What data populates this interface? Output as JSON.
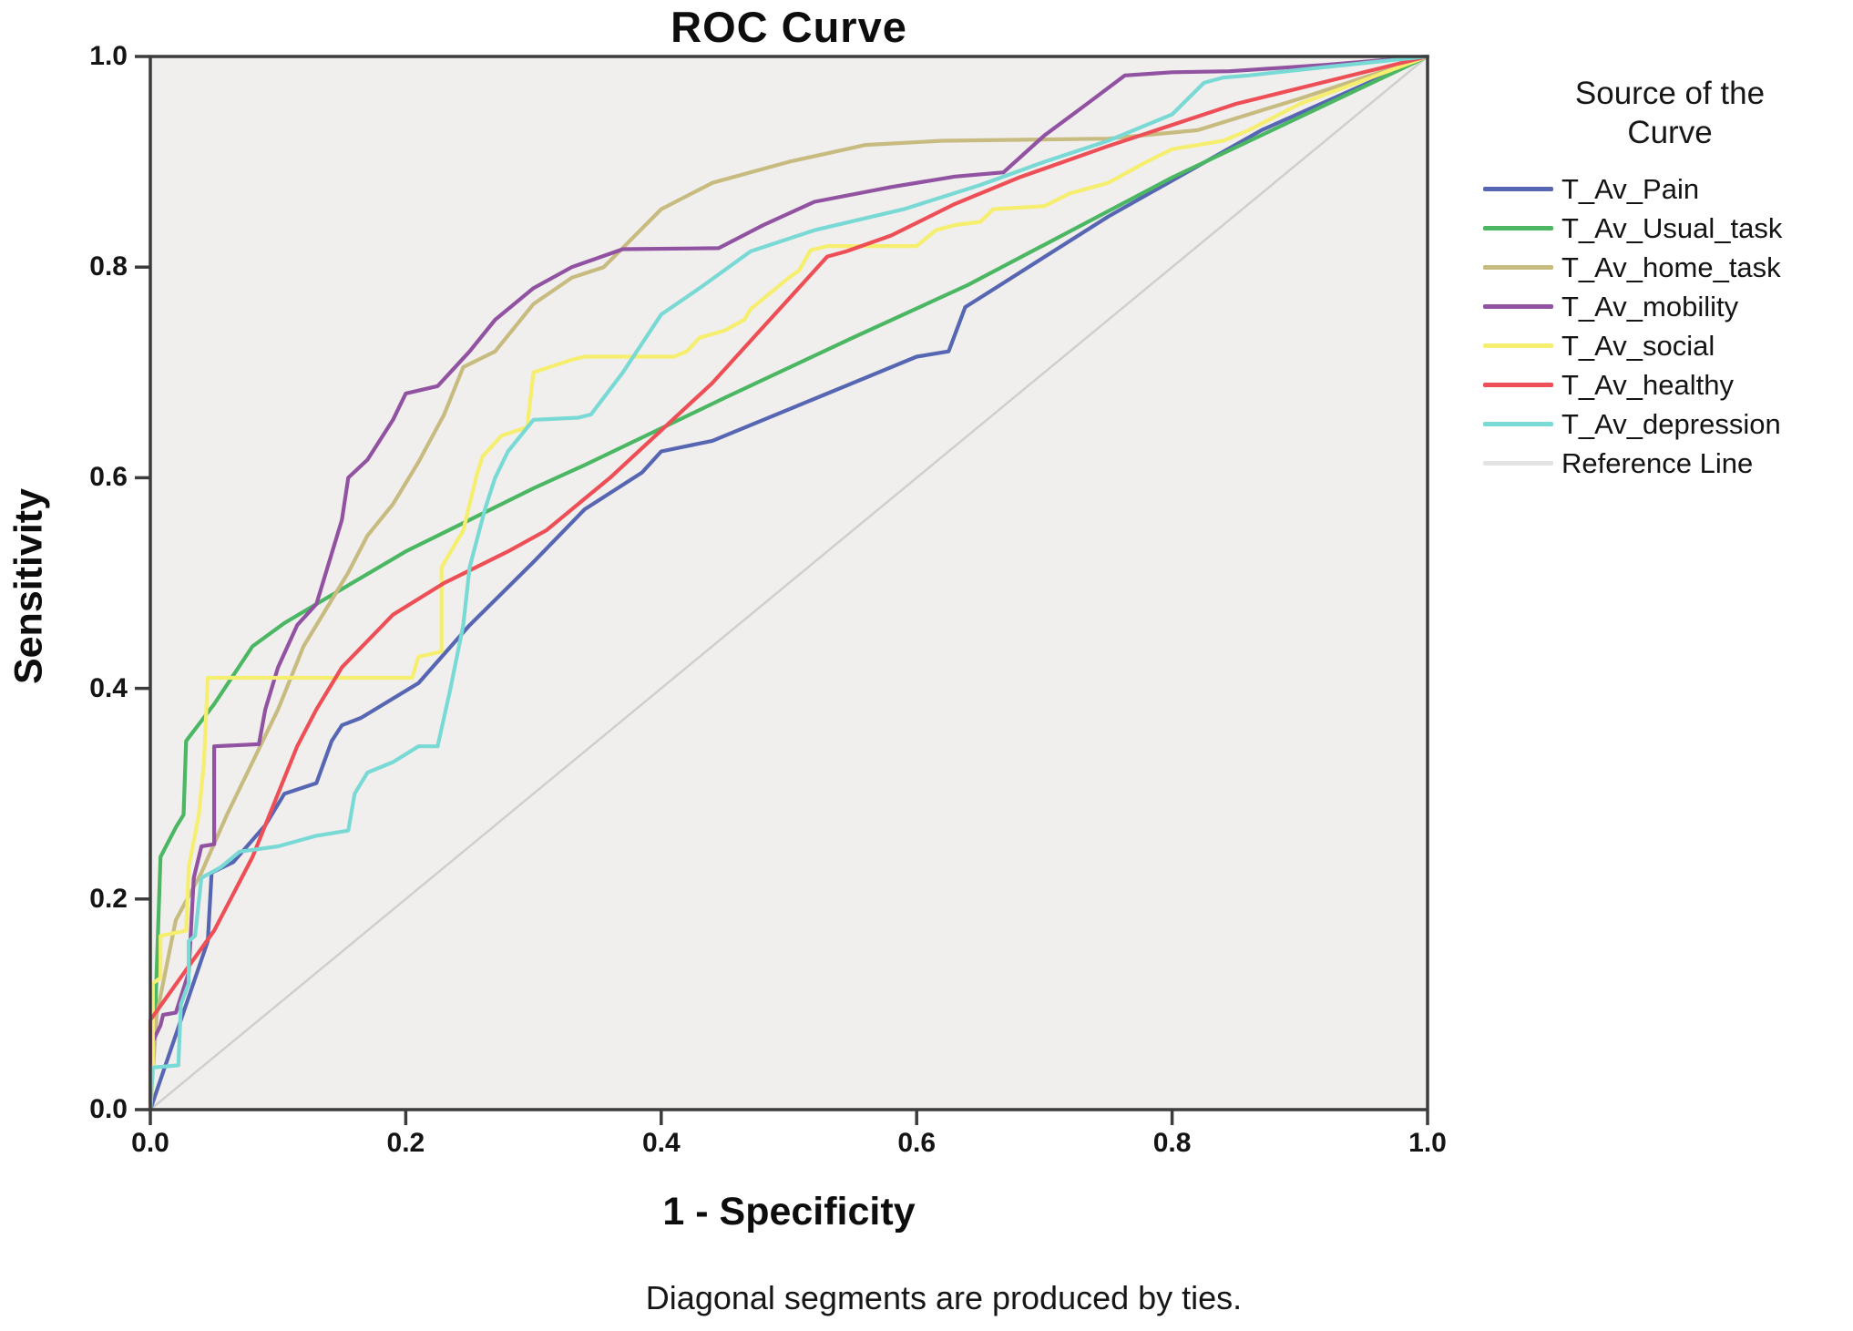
{
  "chart_data": {
    "type": "line",
    "variant": "roc",
    "title": "ROC Curve",
    "xlabel": "1 - Specificity",
    "ylabel": "Sensitivity",
    "caption": "Diagonal segments are produced by ties.",
    "legend_title": "Source of the Curve",
    "legend_position": "right",
    "grid": false,
    "xlim": [
      0,
      1
    ],
    "ylim": [
      0,
      1
    ],
    "x_ticks": [
      "0.0",
      "0.2",
      "0.4",
      "0.6",
      "0.8",
      "1.0"
    ],
    "y_ticks": [
      "0.0",
      "0.2",
      "0.4",
      "0.6",
      "0.8",
      "1.0"
    ],
    "plot_background": "#f0efee",
    "frame_color": "#3c3c3c",
    "series": [
      {
        "name": "T_Av_Pain",
        "color": "#5766b2",
        "is_reference": false,
        "points": [
          [
            0,
            0
          ],
          [
            0.045,
            0.16
          ],
          [
            0.048,
            0.225
          ],
          [
            0.065,
            0.235
          ],
          [
            0.09,
            0.27
          ],
          [
            0.105,
            0.3
          ],
          [
            0.13,
            0.31
          ],
          [
            0.142,
            0.35
          ],
          [
            0.15,
            0.365
          ],
          [
            0.165,
            0.372
          ],
          [
            0.21,
            0.405
          ],
          [
            0.25,
            0.46
          ],
          [
            0.3,
            0.52
          ],
          [
            0.34,
            0.57
          ],
          [
            0.385,
            0.605
          ],
          [
            0.4,
            0.625
          ],
          [
            0.44,
            0.635
          ],
          [
            0.5,
            0.665
          ],
          [
            0.55,
            0.69
          ],
          [
            0.6,
            0.715
          ],
          [
            0.625,
            0.72
          ],
          [
            0.638,
            0.762
          ],
          [
            0.655,
            0.775
          ],
          [
            0.75,
            0.848
          ],
          [
            0.87,
            0.93
          ],
          [
            1,
            1
          ]
        ]
      },
      {
        "name": "T_Av_Usual_task",
        "color": "#4bb763",
        "is_reference": false,
        "points": [
          [
            0,
            0
          ],
          [
            0.003,
            0.06
          ],
          [
            0.008,
            0.24
          ],
          [
            0.02,
            0.268
          ],
          [
            0.026,
            0.28
          ],
          [
            0.028,
            0.35
          ],
          [
            0.05,
            0.385
          ],
          [
            0.08,
            0.44
          ],
          [
            0.105,
            0.462
          ],
          [
            0.13,
            0.48
          ],
          [
            0.2,
            0.53
          ],
          [
            0.3,
            0.59
          ],
          [
            0.34,
            0.612
          ],
          [
            0.45,
            0.676
          ],
          [
            0.55,
            0.733
          ],
          [
            0.64,
            0.783
          ],
          [
            0.8,
            0.885
          ],
          [
            1,
            1
          ]
        ]
      },
      {
        "name": "T_Av_home_task",
        "color": "#c7bb80",
        "is_reference": false,
        "points": [
          [
            0,
            0
          ],
          [
            0.005,
            0.09
          ],
          [
            0.02,
            0.18
          ],
          [
            0.04,
            0.225
          ],
          [
            0.06,
            0.28
          ],
          [
            0.08,
            0.33
          ],
          [
            0.1,
            0.38
          ],
          [
            0.12,
            0.44
          ],
          [
            0.14,
            0.48
          ],
          [
            0.155,
            0.51
          ],
          [
            0.17,
            0.545
          ],
          [
            0.19,
            0.575
          ],
          [
            0.21,
            0.615
          ],
          [
            0.23,
            0.66
          ],
          [
            0.245,
            0.705
          ],
          [
            0.27,
            0.72
          ],
          [
            0.3,
            0.765
          ],
          [
            0.33,
            0.79
          ],
          [
            0.355,
            0.8
          ],
          [
            0.4,
            0.855
          ],
          [
            0.44,
            0.88
          ],
          [
            0.5,
            0.9
          ],
          [
            0.56,
            0.916
          ],
          [
            0.62,
            0.92
          ],
          [
            0.75,
            0.922
          ],
          [
            0.82,
            0.93
          ],
          [
            0.9,
            0.96
          ],
          [
            1,
            1
          ]
        ]
      },
      {
        "name": "T_Av_mobility",
        "color": "#9153a1",
        "is_reference": false,
        "points": [
          [
            0,
            0
          ],
          [
            0.002,
            0.065
          ],
          [
            0.008,
            0.08
          ],
          [
            0.01,
            0.09
          ],
          [
            0.02,
            0.092
          ],
          [
            0.03,
            0.13
          ],
          [
            0.034,
            0.22
          ],
          [
            0.04,
            0.25
          ],
          [
            0.05,
            0.252
          ],
          [
            0.05,
            0.345
          ],
          [
            0.085,
            0.347
          ],
          [
            0.09,
            0.38
          ],
          [
            0.1,
            0.42
          ],
          [
            0.115,
            0.46
          ],
          [
            0.13,
            0.48
          ],
          [
            0.14,
            0.52
          ],
          [
            0.15,
            0.56
          ],
          [
            0.155,
            0.6
          ],
          [
            0.17,
            0.617
          ],
          [
            0.19,
            0.655
          ],
          [
            0.2,
            0.68
          ],
          [
            0.225,
            0.687
          ],
          [
            0.25,
            0.72
          ],
          [
            0.27,
            0.75
          ],
          [
            0.3,
            0.78
          ],
          [
            0.33,
            0.8
          ],
          [
            0.37,
            0.817
          ],
          [
            0.445,
            0.818
          ],
          [
            0.48,
            0.84
          ],
          [
            0.52,
            0.862
          ],
          [
            0.58,
            0.876
          ],
          [
            0.63,
            0.886
          ],
          [
            0.668,
            0.89
          ],
          [
            0.7,
            0.925
          ],
          [
            0.73,
            0.952
          ],
          [
            0.763,
            0.982
          ],
          [
            0.8,
            0.985
          ],
          [
            0.845,
            0.986
          ],
          [
            0.92,
            0.992
          ],
          [
            1,
            1
          ]
        ]
      },
      {
        "name": "T_Av_social",
        "color": "#f5ee6e",
        "is_reference": false,
        "points": [
          [
            0,
            0
          ],
          [
            0.002,
            0.03
          ],
          [
            0.002,
            0.12
          ],
          [
            0.008,
            0.125
          ],
          [
            0.008,
            0.165
          ],
          [
            0.028,
            0.17
          ],
          [
            0.03,
            0.23
          ],
          [
            0.038,
            0.28
          ],
          [
            0.042,
            0.33
          ],
          [
            0.045,
            0.41
          ],
          [
            0.205,
            0.41
          ],
          [
            0.21,
            0.43
          ],
          [
            0.228,
            0.435
          ],
          [
            0.228,
            0.515
          ],
          [
            0.245,
            0.55
          ],
          [
            0.255,
            0.6
          ],
          [
            0.26,
            0.62
          ],
          [
            0.275,
            0.64
          ],
          [
            0.295,
            0.648
          ],
          [
            0.3,
            0.7
          ],
          [
            0.33,
            0.712
          ],
          [
            0.34,
            0.715
          ],
          [
            0.41,
            0.715
          ],
          [
            0.42,
            0.72
          ],
          [
            0.43,
            0.733
          ],
          [
            0.45,
            0.74
          ],
          [
            0.465,
            0.75
          ],
          [
            0.47,
            0.76
          ],
          [
            0.5,
            0.79
          ],
          [
            0.508,
            0.797
          ],
          [
            0.517,
            0.816
          ],
          [
            0.53,
            0.82
          ],
          [
            0.6,
            0.82
          ],
          [
            0.615,
            0.835
          ],
          [
            0.63,
            0.84
          ],
          [
            0.65,
            0.843
          ],
          [
            0.66,
            0.855
          ],
          [
            0.7,
            0.858
          ],
          [
            0.72,
            0.87
          ],
          [
            0.75,
            0.88
          ],
          [
            0.78,
            0.9
          ],
          [
            0.8,
            0.912
          ],
          [
            0.84,
            0.92
          ],
          [
            0.86,
            0.93
          ],
          [
            0.9,
            0.955
          ],
          [
            1,
            1
          ]
        ]
      },
      {
        "name": "T_Av_healthy",
        "color": "#ee4e55",
        "is_reference": false,
        "points": [
          [
            0,
            0
          ],
          [
            0,
            0.085
          ],
          [
            0.05,
            0.17
          ],
          [
            0.08,
            0.24
          ],
          [
            0.1,
            0.3
          ],
          [
            0.115,
            0.345
          ],
          [
            0.13,
            0.38
          ],
          [
            0.15,
            0.42
          ],
          [
            0.19,
            0.47
          ],
          [
            0.23,
            0.5
          ],
          [
            0.28,
            0.53
          ],
          [
            0.31,
            0.55
          ],
          [
            0.36,
            0.6
          ],
          [
            0.4,
            0.645
          ],
          [
            0.44,
            0.69
          ],
          [
            0.47,
            0.73
          ],
          [
            0.5,
            0.77
          ],
          [
            0.53,
            0.81
          ],
          [
            0.545,
            0.815
          ],
          [
            0.58,
            0.83
          ],
          [
            0.63,
            0.86
          ],
          [
            0.68,
            0.885
          ],
          [
            0.75,
            0.915
          ],
          [
            0.85,
            0.955
          ],
          [
            1,
            1
          ]
        ]
      },
      {
        "name": "T_Av_depression",
        "color": "#79d9d5",
        "is_reference": false,
        "points": [
          [
            0,
            0
          ],
          [
            0.002,
            0.04
          ],
          [
            0.022,
            0.042
          ],
          [
            0.024,
            0.1
          ],
          [
            0.03,
            0.12
          ],
          [
            0.03,
            0.16
          ],
          [
            0.035,
            0.165
          ],
          [
            0.04,
            0.22
          ],
          [
            0.055,
            0.23
          ],
          [
            0.07,
            0.245
          ],
          [
            0.1,
            0.25
          ],
          [
            0.13,
            0.26
          ],
          [
            0.155,
            0.265
          ],
          [
            0.16,
            0.3
          ],
          [
            0.17,
            0.32
          ],
          [
            0.19,
            0.33
          ],
          [
            0.21,
            0.345
          ],
          [
            0.225,
            0.345
          ],
          [
            0.235,
            0.4
          ],
          [
            0.245,
            0.46
          ],
          [
            0.25,
            0.515
          ],
          [
            0.262,
            0.57
          ],
          [
            0.27,
            0.6
          ],
          [
            0.28,
            0.625
          ],
          [
            0.3,
            0.655
          ],
          [
            0.335,
            0.657
          ],
          [
            0.345,
            0.66
          ],
          [
            0.37,
            0.7
          ],
          [
            0.4,
            0.755
          ],
          [
            0.43,
            0.78
          ],
          [
            0.47,
            0.815
          ],
          [
            0.52,
            0.835
          ],
          [
            0.59,
            0.855
          ],
          [
            0.65,
            0.878
          ],
          [
            0.7,
            0.9
          ],
          [
            0.75,
            0.92
          ],
          [
            0.8,
            0.945
          ],
          [
            0.825,
            0.975
          ],
          [
            0.84,
            0.98
          ],
          [
            0.86,
            0.982
          ],
          [
            0.92,
            0.99
          ],
          [
            1,
            1
          ]
        ]
      },
      {
        "name": "Reference Line",
        "color": "#cfcfcf",
        "is_reference": true,
        "points": [
          [
            0,
            0
          ],
          [
            1,
            1
          ]
        ]
      }
    ]
  }
}
